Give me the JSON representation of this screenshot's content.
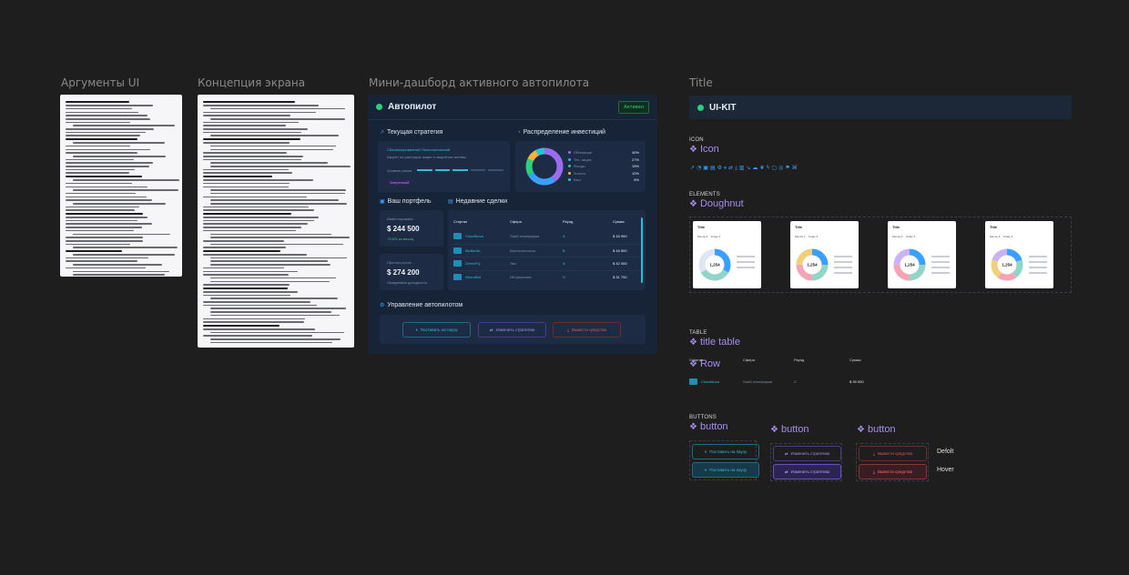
{
  "frames": {
    "args_title": "Аргументы UI",
    "concept_title": "Концепция экрана",
    "dash_title": "Мини-дашборд активного автопилота",
    "kit_title": "Title"
  },
  "dash": {
    "header": "Автопилот",
    "badge": "Активен",
    "strategy_title": "Текущая стратегия",
    "strategy_name": "Сбалансированный Технологический",
    "strategy_desc": "Акцент на растущие акции и защитные активы",
    "strategy_level": "Уровень риска",
    "strategy_tag": "Умеренный",
    "alloc_title": "Распределение инвестиций",
    "alloc_legend": [
      {
        "name": "Облигации",
        "pct": "40%",
        "color": "#9b6cf0"
      },
      {
        "name": "Тех. акции",
        "pct": "27%",
        "color": "#3aa0ff"
      },
      {
        "name": "Фонды",
        "pct": "15%",
        "color": "#2bd07a"
      },
      {
        "name": "Золото",
        "pct": "10%",
        "color": "#f0b43c"
      },
      {
        "name": "Кэш",
        "pct": "8%",
        "color": "#29c0d9"
      }
    ],
    "portfolio_title": "Ваш портфель",
    "invested_label": "Инвестировано",
    "invested_value": "$ 244 500",
    "invested_sub": "+3,6% за месяц",
    "forecast_label": "Прогноз роста",
    "forecast_value": "$ 274 200",
    "forecast_sub": "Ожидаемая доходность",
    "deals_title": "Недавние сделки",
    "deal_cols": [
      "Стартап",
      "Сфера",
      "Раунд",
      "Сумма"
    ],
    "deals": [
      {
        "name": "CloudNova",
        "sphere": "SaaS платформа",
        "round": "A",
        "sum": "$ 18 900"
      },
      {
        "name": "BioMedic",
        "sphere": "Биотехнологии",
        "round": "B",
        "sum": "$ 18 500"
      },
      {
        "name": "GreenFly",
        "sphere": "Эко",
        "round": "A",
        "sum": "$ 42 000"
      },
      {
        "name": "NeuroBot",
        "sphere": "ИИ решения",
        "round": "S",
        "sum": "$ 31 700"
      }
    ],
    "manage_title": "Управление автопилотом",
    "btn_pause": "Поставить на паузу",
    "btn_change": "Изменить стратегию",
    "btn_withdraw": "Вывести средства"
  },
  "kit": {
    "header": "UI-KIT",
    "icon_label": "ICON",
    "icon_comp": "Icon",
    "elements_label": "ELEMENTS",
    "doughnut_comp": "Doughnut",
    "card_title": "Title",
    "card_center": "1,254",
    "card_dd1": "Месяц",
    "card_dd2": "Today",
    "table_label": "TABLE",
    "table_comp": "title table",
    "row_comp": "Row",
    "table_cols": [
      "Стартап",
      "Сфера",
      "Раунд",
      "Сумма"
    ],
    "table_row": {
      "name": "CloudNova",
      "sphere": "SaaS платформа",
      "round": "C",
      "sum": "$ 39 000"
    },
    "buttons_label": "BUTTONS",
    "button_comp": "button",
    "btn_pause": "Поставить на паузу",
    "btn_change": "Изменить стратегию",
    "btn_withdraw": "Вывести средства",
    "btn_withdraw_hover": "Вывести средства",
    "state_default": "Defolt",
    "state_hover": "Hover"
  }
}
